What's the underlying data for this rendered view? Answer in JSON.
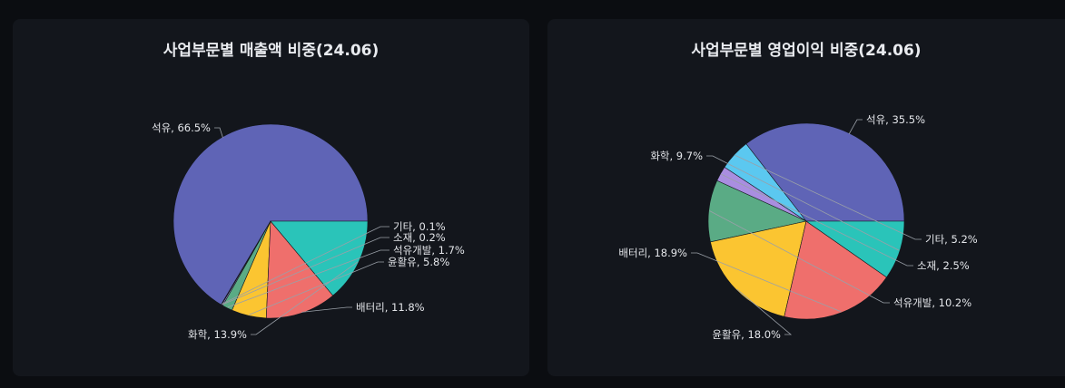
{
  "chart_data": [
    {
      "type": "pie",
      "title": "사업부문별 매출액 비중(24.06)",
      "slices": [
        {
          "name": "석유",
          "value": 66.5,
          "label": "석유, 66.5%",
          "color": "#5f64b6"
        },
        {
          "name": "기타",
          "value": 0.1,
          "label": "기타, 0.1%",
          "color": "#5bc8f0"
        },
        {
          "name": "소재",
          "value": 0.2,
          "label": "소재, 0.2%",
          "color": "#a98ee0"
        },
        {
          "name": "석유개발",
          "value": 1.7,
          "label": "석유개발, 1.7%",
          "color": "#5aab85"
        },
        {
          "name": "윤활유",
          "value": 5.8,
          "label": "윤활유, 5.8%",
          "color": "#fbc531"
        },
        {
          "name": "배터리",
          "value": 11.8,
          "label": "배터리, 11.8%",
          "color": "#ef6f6c"
        },
        {
          "name": "화학",
          "value": 13.9,
          "label": "화학, 13.9%",
          "color": "#2ac4b9"
        }
      ]
    },
    {
      "type": "pie",
      "title": "사업부문별 영업이익 비중(24.06)",
      "slices": [
        {
          "name": "석유",
          "value": 35.5,
          "label": "석유, 35.5%",
          "color": "#5f64b6"
        },
        {
          "name": "기타",
          "value": 5.2,
          "label": "기타, 5.2%",
          "color": "#5bc8f0"
        },
        {
          "name": "소재",
          "value": 2.5,
          "label": "소재, 2.5%",
          "color": "#a98ee0"
        },
        {
          "name": "석유개발",
          "value": 10.2,
          "label": "석유개발, 10.2%",
          "color": "#5aab85"
        },
        {
          "name": "윤활유",
          "value": 18.0,
          "label": "윤활유, 18.0%",
          "color": "#fbc531"
        },
        {
          "name": "배터리",
          "value": 18.9,
          "label": "배터리, 18.9%",
          "color": "#ef6f6c"
        },
        {
          "name": "화학",
          "value": 9.7,
          "label": "화학, 9.7%",
          "color": "#2ac4b9"
        }
      ]
    }
  ]
}
